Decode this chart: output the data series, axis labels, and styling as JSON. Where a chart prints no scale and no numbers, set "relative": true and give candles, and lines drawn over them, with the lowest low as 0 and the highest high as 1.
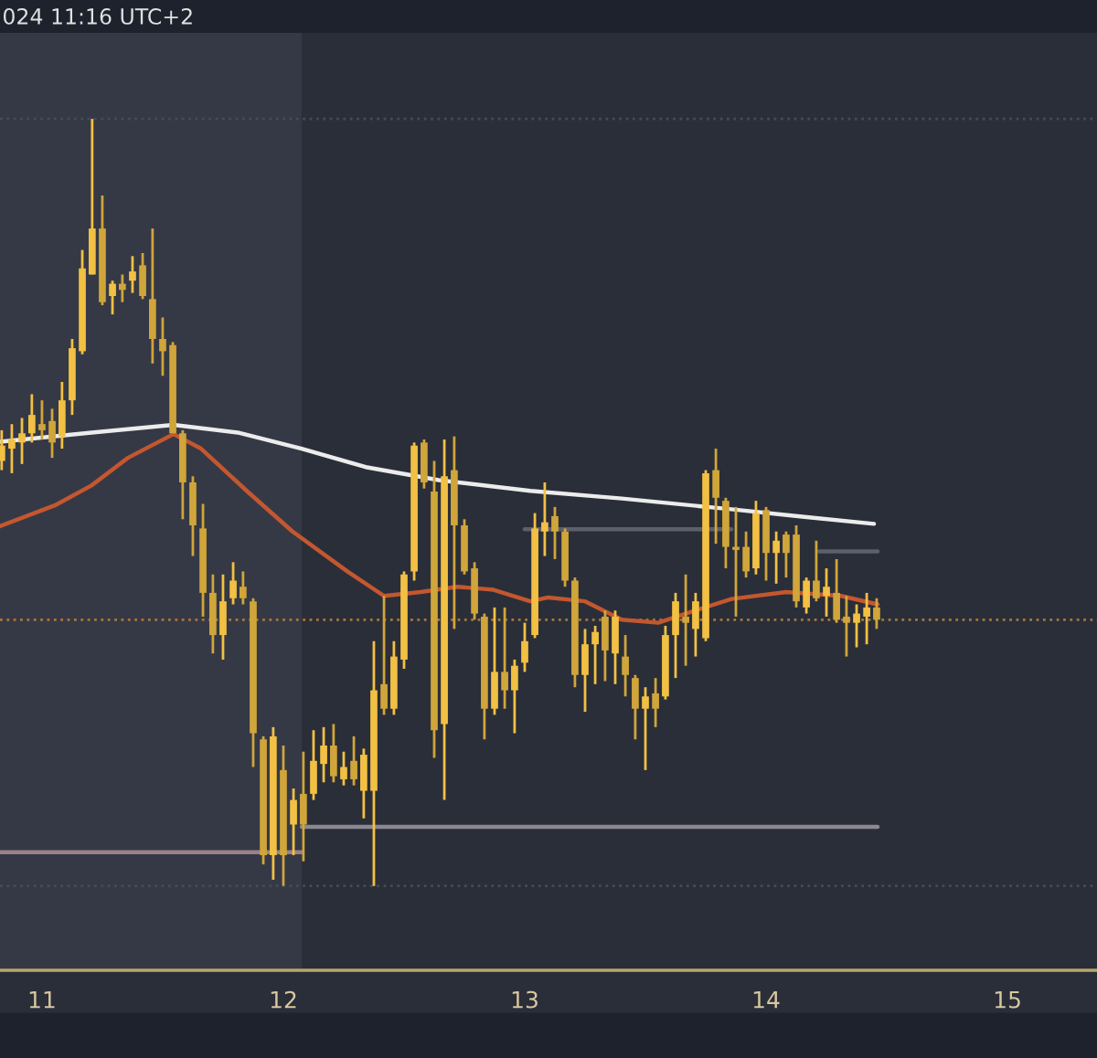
{
  "chart_data": {
    "type": "candlestick",
    "relative": true,
    "colors": [
      "#f2c043",
      "#f2c043",
      "#f2c043",
      "#f2c043",
      "#d0a53a",
      "#d0a53a",
      "#f2c043",
      "#f2c043",
      "#f2c043",
      "#f2c043",
      "#d0a53a",
      "#f2c043",
      "#d0a53a",
      "#f2c043",
      "#d0a53a",
      "#d0a53a",
      "#d0a53a",
      "#d0a53a",
      "#d0a53a",
      "#d0a53a",
      "#d0a53a",
      "#d0a53a",
      "#f2c043",
      "#f2c043",
      "#d0a53a",
      "#d0a53a",
      "#d0a53a",
      "#f2c043",
      "#d0a53a",
      "#f2c043",
      "#d0a53a",
      "#f2c043",
      "#f2c043",
      "#d0a53a",
      "#f2c043",
      "#d0a53a",
      "#f2c043",
      "#f2c043",
      "#d0a53a",
      "#f2c043",
      "#f2c043",
      "#f2c043",
      "#d0a53a",
      "#d0a53a",
      "#f2c043",
      "#d0a53a",
      "#d0a53a",
      "#d0a53a",
      "#d0a53a",
      "#f2c043",
      "#d0a53a",
      "#f2c043",
      "#f2c043",
      "#f2c043",
      "#f2c043",
      "#d0a53a",
      "#d0a53a",
      "#d0a53a",
      "#f2c043",
      "#f2c043",
      "#d0a53a",
      "#f2c043",
      "#d0a53a",
      "#d0a53a",
      "#f2c043",
      "#d0a53a",
      "#f2c043",
      "#f2c043",
      "#d0a53a",
      "#f2c043",
      "#f2c043",
      "#d0a53a",
      "#d0a53a",
      "#d0a53a",
      "#d0a53a",
      "#f2c043",
      "#d0a53a",
      "#f2c043",
      "#d0a53a",
      "#d0a53a",
      "#f2c043",
      "#d0a53a",
      "#f2c043",
      "#d0a53a",
      "#d0a53a",
      "#f2c043",
      "#f2c043",
      "#d0a53a"
    ],
    "annotations": [
      "024 11:16 UTC+2"
    ],
    "x": [
      10.833,
      10.875,
      10.917,
      10.958,
      11.0,
      11.042,
      11.083,
      11.125,
      11.167,
      11.208,
      11.25,
      11.292,
      11.333,
      11.375,
      11.417,
      11.458,
      11.5,
      11.542,
      11.583,
      11.625,
      11.667,
      11.708,
      11.75,
      11.792,
      11.833,
      11.875,
      11.917,
      11.958,
      12.0,
      12.042,
      12.083,
      12.125,
      12.167,
      12.208,
      12.25,
      12.292,
      12.333,
      12.375,
      12.417,
      12.458,
      12.5,
      12.542,
      12.583,
      12.625,
      12.667,
      12.708,
      12.75,
      12.792,
      12.833,
      12.875,
      12.917,
      12.958,
      13.0,
      13.042,
      13.083,
      13.125,
      13.167,
      13.208,
      13.25,
      13.292,
      13.333,
      13.375,
      13.417,
      13.458,
      13.5,
      13.542,
      13.583,
      13.625,
      13.667,
      13.708,
      13.75,
      13.792,
      13.833,
      13.875,
      13.917,
      13.958,
      14.0,
      14.042,
      14.083,
      14.125,
      14.167,
      14.208,
      14.25,
      14.292,
      14.333,
      14.375,
      14.417,
      14.458
    ],
    "ohlc": [
      [
        0.554,
        0.594,
        0.542,
        0.574
      ],
      [
        0.57,
        0.602,
        0.538,
        0.582
      ],
      [
        0.578,
        0.61,
        0.55,
        0.59
      ],
      [
        0.59,
        0.641,
        0.578,
        0.614
      ],
      [
        0.602,
        0.633,
        0.582,
        0.594
      ],
      [
        0.606,
        0.622,
        0.558,
        0.578
      ],
      [
        0.586,
        0.657,
        0.57,
        0.633
      ],
      [
        0.633,
        0.713,
        0.614,
        0.701
      ],
      [
        0.697,
        0.829,
        0.693,
        0.805
      ],
      [
        0.797,
        1.0,
        0.797,
        0.857
      ],
      [
        0.857,
        0.9,
        0.757,
        0.761
      ],
      [
        0.769,
        0.789,
        0.745,
        0.785
      ],
      [
        0.785,
        0.797,
        0.761,
        0.777
      ],
      [
        0.789,
        0.821,
        0.773,
        0.801
      ],
      [
        0.809,
        0.825,
        0.765,
        0.769
      ],
      [
        0.765,
        0.857,
        0.681,
        0.713
      ],
      [
        0.713,
        0.741,
        0.665,
        0.697
      ],
      [
        0.705,
        0.709,
        0.59,
        0.59
      ],
      [
        0.59,
        0.594,
        0.478,
        0.526
      ],
      [
        0.526,
        0.534,
        0.43,
        0.47
      ],
      [
        0.466,
        0.498,
        0.351,
        0.382
      ],
      [
        0.382,
        0.406,
        0.303,
        0.327
      ],
      [
        0.327,
        0.406,
        0.295,
        0.371
      ],
      [
        0.375,
        0.422,
        0.367,
        0.398
      ],
      [
        0.39,
        0.41,
        0.367,
        0.375
      ],
      [
        0.371,
        0.375,
        0.155,
        0.199
      ],
      [
        0.191,
        0.195,
        0.028,
        0.04
      ],
      [
        0.04,
        0.207,
        0.008,
        0.195
      ],
      [
        0.151,
        0.183,
        0.0,
        0.04
      ],
      [
        0.08,
        0.127,
        0.04,
        0.112
      ],
      [
        0.12,
        0.175,
        0.032,
        0.08
      ],
      [
        0.12,
        0.203,
        0.112,
        0.163
      ],
      [
        0.159,
        0.207,
        0.135,
        0.183
      ],
      [
        0.183,
        0.211,
        0.135,
        0.143
      ],
      [
        0.139,
        0.175,
        0.131,
        0.155
      ],
      [
        0.163,
        0.195,
        0.131,
        0.139
      ],
      [
        0.124,
        0.179,
        0.088,
        0.171
      ],
      [
        0.124,
        0.319,
        0.0,
        0.255
      ],
      [
        0.263,
        0.378,
        0.223,
        0.231
      ],
      [
        0.231,
        0.319,
        0.223,
        0.299
      ],
      [
        0.295,
        0.41,
        0.283,
        0.406
      ],
      [
        0.41,
        0.578,
        0.398,
        0.574
      ],
      [
        0.578,
        0.582,
        0.518,
        0.526
      ],
      [
        0.514,
        0.554,
        0.167,
        0.203
      ],
      [
        0.211,
        0.582,
        0.112,
        0.534
      ],
      [
        0.542,
        0.586,
        0.335,
        0.47
      ],
      [
        0.47,
        0.478,
        0.406,
        0.41
      ],
      [
        0.414,
        0.422,
        0.347,
        0.355
      ],
      [
        0.351,
        0.355,
        0.191,
        0.231
      ],
      [
        0.231,
        0.363,
        0.223,
        0.279
      ],
      [
        0.279,
        0.363,
        0.231,
        0.255
      ],
      [
        0.255,
        0.295,
        0.199,
        0.287
      ],
      [
        0.291,
        0.343,
        0.279,
        0.319
      ],
      [
        0.327,
        0.486,
        0.323,
        0.466
      ],
      [
        0.462,
        0.526,
        0.43,
        0.474
      ],
      [
        0.482,
        0.494,
        0.426,
        0.462
      ],
      [
        0.462,
        0.466,
        0.39,
        0.398
      ],
      [
        0.398,
        0.402,
        0.259,
        0.275
      ],
      [
        0.275,
        0.335,
        0.227,
        0.315
      ],
      [
        0.315,
        0.339,
        0.263,
        0.331
      ],
      [
        0.351,
        0.359,
        0.267,
        0.307
      ],
      [
        0.303,
        0.359,
        0.263,
        0.351
      ],
      [
        0.299,
        0.327,
        0.247,
        0.275
      ],
      [
        0.271,
        0.275,
        0.191,
        0.231
      ],
      [
        0.231,
        0.259,
        0.151,
        0.247
      ],
      [
        0.251,
        0.271,
        0.207,
        0.231
      ],
      [
        0.247,
        0.339,
        0.243,
        0.327
      ],
      [
        0.327,
        0.382,
        0.271,
        0.371
      ],
      [
        0.351,
        0.406,
        0.287,
        0.343
      ],
      [
        0.335,
        0.382,
        0.299,
        0.371
      ],
      [
        0.323,
        0.542,
        0.319,
        0.538
      ],
      [
        0.542,
        0.57,
        0.446,
        0.506
      ],
      [
        0.502,
        0.506,
        0.414,
        0.442
      ],
      [
        0.442,
        0.494,
        0.351,
        0.438
      ],
      [
        0.442,
        0.462,
        0.402,
        0.41
      ],
      [
        0.414,
        0.502,
        0.406,
        0.486
      ],
      [
        0.49,
        0.494,
        0.398,
        0.434
      ],
      [
        0.434,
        0.462,
        0.394,
        0.45
      ],
      [
        0.458,
        0.462,
        0.402,
        0.434
      ],
      [
        0.458,
        0.47,
        0.363,
        0.371
      ],
      [
        0.363,
        0.402,
        0.355,
        0.398
      ],
      [
        0.398,
        0.45,
        0.371,
        0.375
      ],
      [
        0.378,
        0.414,
        0.351,
        0.39
      ],
      [
        0.382,
        0.426,
        0.343,
        0.347
      ],
      [
        0.351,
        0.378,
        0.299,
        0.343
      ],
      [
        0.343,
        0.367,
        0.311,
        0.355
      ],
      [
        0.351,
        0.382,
        0.315,
        0.363
      ],
      [
        0.363,
        0.375,
        0.335,
        0.347
      ]
    ],
    "series": [
      {
        "type": "line",
        "color": "#ececec",
        "x": [
          10.826,
          11.205,
          11.545,
          11.811,
          12.076,
          12.341,
          12.644,
          13.023,
          13.402,
          13.856,
          14.159,
          14.447
        ],
        "values": [
          0.579,
          0.591,
          0.601,
          0.591,
          0.57,
          0.546,
          0.529,
          0.515,
          0.505,
          0.491,
          0.481,
          0.472
        ]
      },
      {
        "type": "line",
        "color": "#c4572f",
        "x": [
          10.826,
          11.053,
          11.205,
          11.356,
          11.545,
          11.659,
          11.848,
          12.038,
          12.265,
          12.417,
          12.568,
          12.72,
          12.871,
          13.023,
          13.098,
          13.25,
          13.402,
          13.553,
          13.667,
          13.856,
          14.083,
          14.311,
          14.462
        ],
        "values": [
          0.469,
          0.496,
          0.522,
          0.558,
          0.589,
          0.57,
          0.515,
          0.462,
          0.41,
          0.378,
          0.383,
          0.39,
          0.386,
          0.371,
          0.376,
          0.371,
          0.347,
          0.343,
          0.355,
          0.374,
          0.383,
          0.378,
          0.367
        ]
      },
      {
        "type": "line",
        "color": "#9a8288",
        "x": [
          10.826,
          12.076
        ],
        "values": [
          0.044,
          0.044
        ]
      },
      {
        "type": "line",
        "color": "#8a8890",
        "x": [
          12.076,
          14.462
        ],
        "values": [
          0.077,
          0.077
        ]
      },
      {
        "type": "line",
        "color": "#5d606b",
        "x": [
          13.0,
          13.856
        ],
        "values": [
          0.465,
          0.465
        ]
      },
      {
        "type": "line",
        "color": "#5d606b",
        "x": [
          14.22,
          14.462
        ],
        "values": [
          0.436,
          0.436
        ]
      }
    ],
    "ref_lines": [
      {
        "axis": "y",
        "value": 0.347,
        "color": "#a8773a",
        "line_style": "dotted"
      },
      {
        "axis": "y",
        "value": 1.0,
        "color": "#474b57",
        "line_style": "dotted"
      },
      {
        "axis": "y",
        "value": 0.0,
        "color": "#474b57",
        "line_style": "dotted"
      }
    ],
    "bands": [
      {
        "axis": "x",
        "from": 10.826,
        "to": 12.076,
        "color": "#353946"
      }
    ],
    "xlim": [
      10.826,
      15.371
    ],
    "xticks": [
      11,
      12,
      13,
      14,
      15
    ]
  }
}
